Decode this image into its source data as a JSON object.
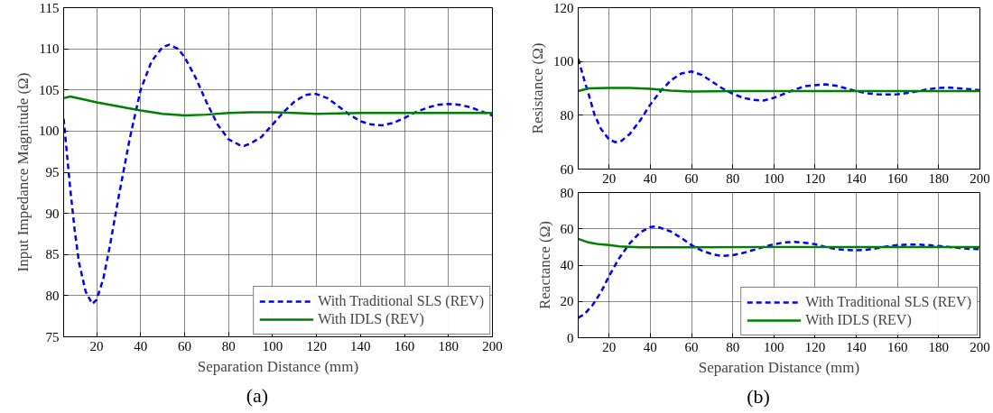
{
  "chart_data": [
    {
      "type": "line",
      "xlabel": "Separation Distance (mm)",
      "ylabel": "Input Impedance Magnitude (Ω)",
      "xlim": [
        5,
        200
      ],
      "ylim": [
        75,
        115
      ],
      "xticks": [
        20,
        40,
        60,
        80,
        100,
        120,
        140,
        160,
        180,
        200
      ],
      "yticks": [
        75,
        80,
        85,
        90,
        95,
        100,
        105,
        110,
        115
      ],
      "grid": true,
      "legend": "bottom right",
      "annotations": [
        "(a)"
      ],
      "series": [
        {
          "name": "With Traditional SLS (REV)",
          "color": "#0000ff",
          "line_style": "dashed",
          "x": [
            5,
            8,
            10,
            12,
            15,
            18,
            20,
            23,
            26,
            30,
            35,
            40,
            45,
            50,
            53,
            57,
            60,
            65,
            70,
            75,
            80,
            85,
            87,
            90,
            95,
            100,
            105,
            110,
            115,
            118,
            120,
            125,
            130,
            135,
            140,
            145,
            150,
            155,
            160,
            165,
            170,
            175,
            180,
            185,
            190,
            195,
            200
          ],
          "values": [
            101.5,
            93,
            88,
            84,
            80.5,
            79,
            79.5,
            82,
            86,
            92,
            99,
            105,
            108.5,
            110.2,
            110.5,
            110,
            109,
            106.5,
            103.5,
            100.8,
            99,
            98.3,
            98.2,
            98.5,
            99.3,
            100.8,
            102.3,
            103.6,
            104.4,
            104.5,
            104.5,
            104,
            103,
            102,
            101.2,
            100.8,
            100.7,
            101,
            101.6,
            102.3,
            102.8,
            103.2,
            103.3,
            103.2,
            102.9,
            102.4,
            101.9
          ]
        },
        {
          "name": "With IDLS (REV)",
          "color": "#008000",
          "line_style": "solid",
          "x": [
            5,
            8,
            15,
            20,
            30,
            40,
            50,
            60,
            70,
            80,
            90,
            100,
            110,
            120,
            140,
            160,
            180,
            200
          ],
          "values": [
            104,
            104.2,
            103.8,
            103.5,
            103,
            102.5,
            102.1,
            101.9,
            102,
            102.2,
            102.3,
            102.3,
            102.2,
            102.1,
            102.2,
            102.2,
            102.2,
            102.2
          ]
        }
      ]
    },
    {
      "type": "line",
      "ylabel": "Resistance (Ω)",
      "xlim": [
        5,
        200
      ],
      "ylim": [
        60,
        120
      ],
      "xticks": [
        20,
        40,
        60,
        80,
        100,
        120,
        140,
        160,
        180,
        200
      ],
      "yticks": [
        60,
        80,
        100,
        120
      ],
      "grid": true,
      "series": [
        {
          "color": "#0000ff",
          "line_style": "dashed",
          "x": [
            5,
            8,
            10,
            13,
            16,
            20,
            23,
            26,
            30,
            35,
            40,
            45,
            50,
            55,
            60,
            65,
            70,
            75,
            80,
            85,
            90,
            95,
            100,
            105,
            110,
            115,
            120,
            125,
            130,
            135,
            140,
            145,
            150,
            155,
            160,
            165,
            170,
            175,
            180,
            185,
            190,
            195,
            200
          ],
          "values": [
            101,
            93,
            88,
            80,
            75,
            71,
            70,
            70.5,
            73,
            78,
            84,
            89,
            93,
            95.5,
            96.3,
            95,
            92.5,
            90,
            88,
            86.5,
            85.7,
            85.5,
            86.5,
            88,
            89.5,
            90.8,
            91.2,
            91.5,
            91,
            90,
            89,
            88.2,
            87.8,
            87.7,
            87.8,
            88.3,
            89,
            89.7,
            90.2,
            90.3,
            90,
            89.7,
            89.3
          ]
        },
        {
          "color": "#008000",
          "line_style": "solid",
          "x": [
            5,
            10,
            20,
            30,
            40,
            50,
            60,
            80,
            100,
            120,
            140,
            160,
            180,
            200
          ],
          "values": [
            89,
            90,
            90.2,
            90.2,
            89.8,
            89.2,
            88.8,
            89,
            89,
            89,
            89,
            89,
            89,
            89
          ]
        }
      ]
    },
    {
      "type": "line",
      "xlabel": "Separation Distance (mm)",
      "ylabel": "Reactance (Ω)",
      "xlim": [
        5,
        200
      ],
      "ylim": [
        0,
        80
      ],
      "xticks": [
        20,
        40,
        60,
        80,
        100,
        120,
        140,
        160,
        180,
        200
      ],
      "yticks": [
        0,
        20,
        40,
        60,
        80
      ],
      "grid": true,
      "legend": "bottom right",
      "annotations": [
        "(b)"
      ],
      "series": [
        {
          "name": "With Traditional SLS (REV)",
          "color": "#0000ff",
          "line_style": "dashed",
          "x": [
            5,
            8,
            12,
            16,
            20,
            25,
            30,
            35,
            40,
            43,
            45,
            50,
            55,
            60,
            65,
            70,
            75,
            80,
            85,
            90,
            95,
            100,
            105,
            110,
            115,
            120,
            125,
            130,
            135,
            140,
            145,
            150,
            155,
            160,
            165,
            170,
            175,
            180,
            185,
            190,
            195,
            200
          ],
          "values": [
            11,
            13,
            18,
            25,
            34,
            44,
            52,
            58,
            61,
            61.3,
            60.5,
            58.5,
            55,
            51,
            48,
            46,
            45,
            45.5,
            46.7,
            48.3,
            50,
            51.5,
            52.5,
            52.8,
            52.3,
            51.5,
            50,
            48.8,
            48.3,
            48.2,
            48.5,
            49.3,
            50.3,
            51,
            51.3,
            51.3,
            51,
            50.5,
            50,
            49.4,
            49,
            48.8
          ]
        },
        {
          "name": "With IDLS (REV)",
          "color": "#008000",
          "line_style": "solid",
          "x": [
            5,
            10,
            15,
            20,
            25,
            35,
            60,
            100,
            140,
            200
          ],
          "values": [
            54.5,
            52.5,
            51.5,
            51,
            50.3,
            49.8,
            49.8,
            50,
            50,
            50
          ]
        }
      ]
    }
  ]
}
